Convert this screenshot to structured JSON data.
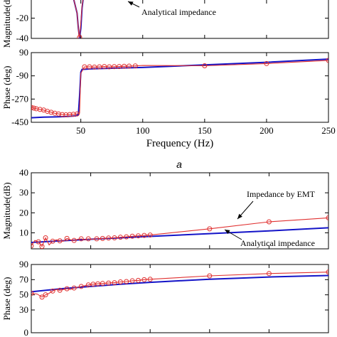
{
  "caption": "a",
  "colors": {
    "emt": "#e03030",
    "analytical": "#1414c8",
    "axis": "#000000"
  },
  "chart_data": [
    {
      "panel": "a-magnitude",
      "type": "line",
      "ylabel": "Magnitude(dB)",
      "ylim": [
        -40,
        5
      ],
      "yticks": [
        -40,
        -20
      ],
      "xlim": [
        10,
        250
      ],
      "annotations": [
        "Analytical impedance"
      ],
      "series": [
        {
          "name": "Analytical impedance",
          "role": "analytical",
          "x": [
            40,
            44,
            47,
            48,
            49,
            50,
            51,
            52,
            56
          ],
          "y": [
            5,
            0,
            -15,
            -30,
            -40,
            -30,
            -10,
            0,
            5
          ]
        },
        {
          "role": "emt",
          "x": [
            40,
            44,
            47,
            48,
            48.5,
            49,
            50,
            51,
            52,
            56
          ],
          "y": [
            5,
            0,
            -15,
            -30,
            -38,
            -39,
            -25,
            -8,
            0,
            5
          ],
          "markers_x": [
            49
          ],
          "markers_y": [
            -39
          ]
        }
      ]
    },
    {
      "panel": "a-phase",
      "type": "line",
      "ylabel": "Phase (deg)",
      "xlabel": "Frequency (Hz)",
      "ylim": [
        -450,
        90
      ],
      "yticks": [
        -450,
        -270,
        -90,
        90
      ],
      "xlim": [
        10,
        250
      ],
      "xticks": [
        50,
        100,
        150,
        200,
        250
      ],
      "series": [
        {
          "role": "analytical",
          "x": [
            10,
            20,
            30,
            40,
            46,
            48,
            49,
            50,
            51,
            60,
            80,
            100,
            150,
            200,
            250
          ],
          "y": [
            -415,
            -410,
            -408,
            -405,
            -400,
            -390,
            -250,
            -60,
            -40,
            -35,
            -30,
            -25,
            -5,
            15,
            40
          ]
        },
        {
          "role": "emt",
          "x": [
            10,
            12,
            14,
            17,
            20,
            23,
            26,
            29,
            32,
            35,
            38,
            41,
            44,
            47,
            49,
            50,
            53,
            57,
            61,
            65,
            69,
            73,
            77,
            81,
            85,
            89,
            94,
            100,
            150,
            200,
            250
          ],
          "y": [
            -335,
            -340,
            -345,
            -350,
            -355,
            -365,
            -372,
            -380,
            -385,
            -390,
            -392,
            -390,
            -388,
            -385,
            -380,
            -70,
            -20,
            -20,
            -22,
            -20,
            -18,
            -20,
            -19,
            -18,
            -16,
            -15,
            -13,
            -10,
            -12,
            5,
            30
          ],
          "markers_x": [
            10,
            12,
            14,
            17,
            20,
            23,
            26,
            29,
            32,
            35,
            38,
            41,
            44,
            47,
            53,
            57,
            61,
            65,
            69,
            73,
            77,
            81,
            85,
            89,
            94,
            150,
            200,
            250
          ],
          "markers_y": [
            -335,
            -340,
            -345,
            -350,
            -355,
            -365,
            -372,
            -380,
            -385,
            -390,
            -392,
            -390,
            -388,
            -385,
            -20,
            -20,
            -22,
            -20,
            -18,
            -20,
            -19,
            -18,
            -16,
            -15,
            -13,
            -12,
            5,
            30
          ]
        }
      ]
    },
    {
      "panel": "b-magnitude",
      "type": "line",
      "ylabel": "Magnitude(dB)",
      "ylim": [
        2,
        40
      ],
      "yticks": [
        10,
        20,
        30,
        40
      ],
      "xlim": [
        0,
        250
      ],
      "annotations": [
        "Impedance by EMT",
        "Analytical impedance"
      ],
      "series": [
        {
          "name": "Analytical impedance",
          "role": "analytical",
          "x": [
            0,
            50,
            100,
            150,
            200,
            250
          ],
          "y": [
            5.2,
            6.8,
            8.2,
            9.6,
            11.0,
            12.5
          ]
        },
        {
          "name": "Impedance by EMT",
          "role": "emt",
          "x": [
            0,
            3,
            6,
            9,
            12,
            15,
            18,
            21,
            24,
            27,
            30,
            33,
            36,
            39,
            42,
            45,
            48,
            51,
            55,
            60,
            65,
            70,
            75,
            80,
            85,
            90,
            95,
            100,
            150,
            200,
            250
          ],
          "y": [
            3.5,
            6.2,
            5.5,
            3.2,
            7.5,
            4.0,
            5.8,
            6.5,
            6.0,
            5.8,
            7.2,
            6.5,
            6.2,
            6.8,
            7.0,
            6.5,
            7.0,
            6.8,
            7.0,
            7.2,
            7.4,
            7.5,
            7.8,
            8.0,
            8.3,
            8.5,
            8.7,
            8.9,
            12.0,
            15.5,
            17.5
          ],
          "markers_x": [
            0,
            6,
            9,
            12,
            18,
            24,
            30,
            36,
            42,
            48,
            55,
            60,
            65,
            70,
            75,
            80,
            85,
            90,
            95,
            100,
            150,
            200,
            250
          ],
          "markers_y": [
            3.5,
            5.5,
            3.2,
            7.5,
            5.8,
            6.0,
            7.2,
            6.2,
            7.0,
            7.0,
            7.0,
            7.2,
            7.4,
            7.5,
            7.8,
            8.0,
            8.3,
            8.5,
            8.7,
            8.9,
            12.0,
            15.5,
            17.5
          ]
        }
      ]
    },
    {
      "panel": "b-phase",
      "type": "line",
      "ylabel": "Phase (deg)",
      "ylim": [
        0,
        90
      ],
      "yticks": [
        0,
        30,
        50,
        70,
        90
      ],
      "xlim": [
        0,
        250
      ],
      "series": [
        {
          "role": "analytical",
          "x": [
            0,
            25,
            50,
            75,
            100,
            125,
            150,
            175,
            200,
            225,
            250
          ],
          "y": [
            54,
            58,
            61,
            64,
            66.5,
            68.5,
            70.5,
            72,
            73.5,
            74.5,
            75.5
          ]
        },
        {
          "role": "emt",
          "x": [
            0,
            5,
            9,
            12,
            15,
            18,
            21,
            24,
            27,
            30,
            33,
            36,
            39,
            42,
            45,
            48,
            52,
            56,
            60,
            65,
            70,
            75,
            80,
            85,
            90,
            95,
            100,
            150,
            200,
            250
          ],
          "y": [
            52,
            51,
            47,
            50,
            52,
            55,
            57,
            56,
            57,
            58,
            57,
            59,
            60,
            61,
            62,
            63,
            64,
            64.5,
            65,
            65.5,
            66,
            67,
            67.5,
            68.5,
            69,
            70,
            70.5,
            75,
            78,
            80
          ],
          "markers_x": [
            0,
            9,
            12,
            18,
            24,
            30,
            36,
            42,
            48,
            52,
            56,
            60,
            65,
            70,
            75,
            80,
            85,
            90,
            95,
            100,
            150,
            200,
            250
          ],
          "markers_y": [
            52,
            47,
            50,
            55,
            56,
            58,
            59,
            61,
            63,
            64,
            64.5,
            65,
            65.5,
            66,
            67,
            67.5,
            68.5,
            69,
            70,
            70.5,
            75,
            78,
            80
          ]
        }
      ]
    }
  ]
}
